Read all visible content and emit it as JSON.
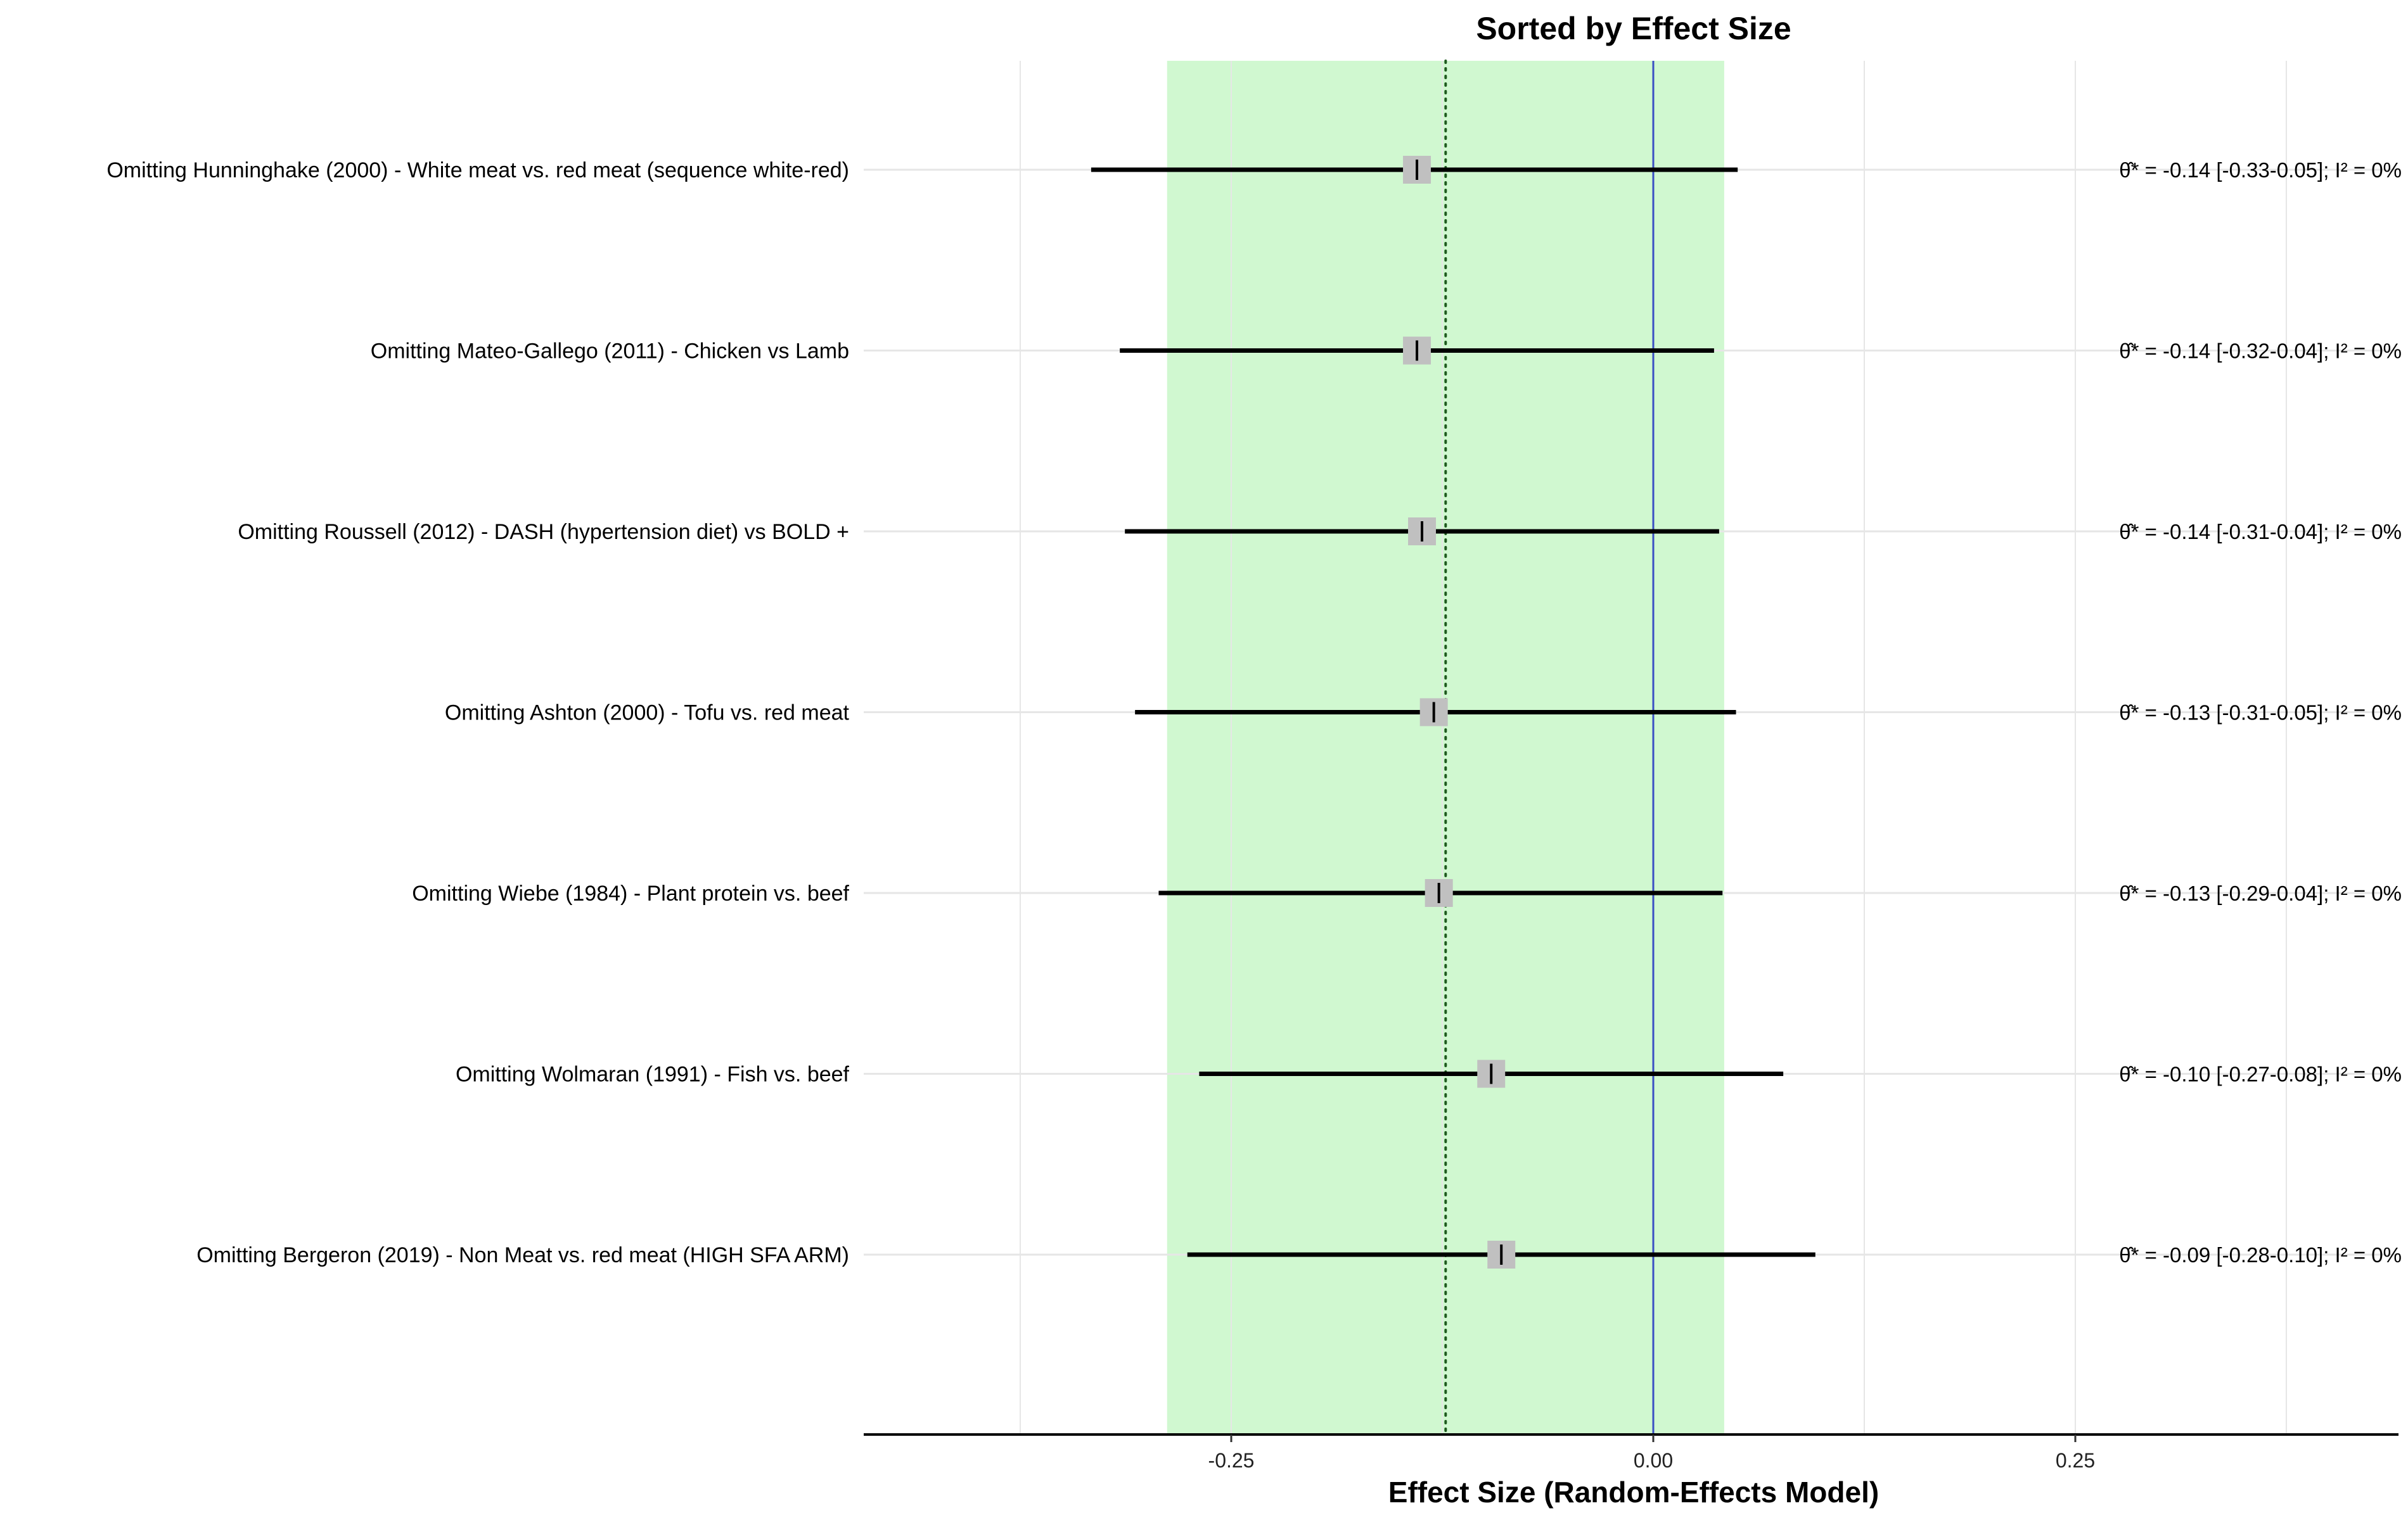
{
  "chart_data": {
    "type": "forest",
    "title": "Sorted by Effect Size",
    "xlabel": "Effect Size (Random-Effects Model)",
    "xlim": [
      -0.47,
      0.44
    ],
    "x_ticks": [
      -0.25,
      0.0,
      0.25
    ],
    "x_tick_labels": [
      "-0.25",
      "0.00",
      "0.25"
    ],
    "grid": true,
    "pooled_estimate": -0.123,
    "pooled_ci": [
      -0.288,
      0.042
    ],
    "reference_line": 0.0,
    "rows": [
      {
        "label": "Omitting Hunninghake (2000) - White meat vs. red meat (sequence white-red)",
        "estimate": -0.14,
        "lower": -0.333,
        "upper": 0.05,
        "annotation": "θ̂* = -0.14 [-0.33-0.05]; I² = 0%"
      },
      {
        "label": "Omitting Mateo-Gallego (2011) - Chicken vs Lamb",
        "estimate": -0.14,
        "lower": -0.316,
        "upper": 0.036,
        "annotation": "θ̂* = -0.14 [-0.32-0.04]; I² = 0%"
      },
      {
        "label": "Omitting Roussell (2012) - DASH (hypertension diet) vs BOLD +",
        "estimate": -0.137,
        "lower": -0.313,
        "upper": 0.039,
        "annotation": "θ̂* = -0.14 [-0.31-0.04]; I² = 0%"
      },
      {
        "label": "Omitting Ashton (2000) - Tofu vs. red meat",
        "estimate": -0.13,
        "lower": -0.307,
        "upper": 0.049,
        "annotation": "θ̂* = -0.13 [-0.31-0.05]; I² = 0%"
      },
      {
        "label": "Omitting Wiebe (1984) - Plant protein vs. beef",
        "estimate": -0.127,
        "lower": -0.293,
        "upper": 0.041,
        "annotation": "θ̂* = -0.13 [-0.29-0.04]; I² = 0%"
      },
      {
        "label": "Omitting Wolmaran (1991) - Fish vs. beef",
        "estimate": -0.096,
        "lower": -0.269,
        "upper": 0.077,
        "annotation": "θ̂* = -0.10 [-0.27-0.08]; I² = 0%"
      },
      {
        "label": "Omitting Bergeron (2019) - Non Meat vs. red meat   (HIGH SFA ARM)",
        "estimate": -0.09,
        "lower": -0.276,
        "upper": 0.096,
        "annotation": "θ̂* = -0.09 [-0.28-0.10]; I² = 0%"
      }
    ],
    "colors": {
      "ci_band": "#d0f8d0",
      "zero_line": "#3a4fc4",
      "pooled_line": "#1e5a1e",
      "ci_bar": "#000000",
      "point_box": "#c0c0c0",
      "grid": "#e6e6e6"
    }
  }
}
